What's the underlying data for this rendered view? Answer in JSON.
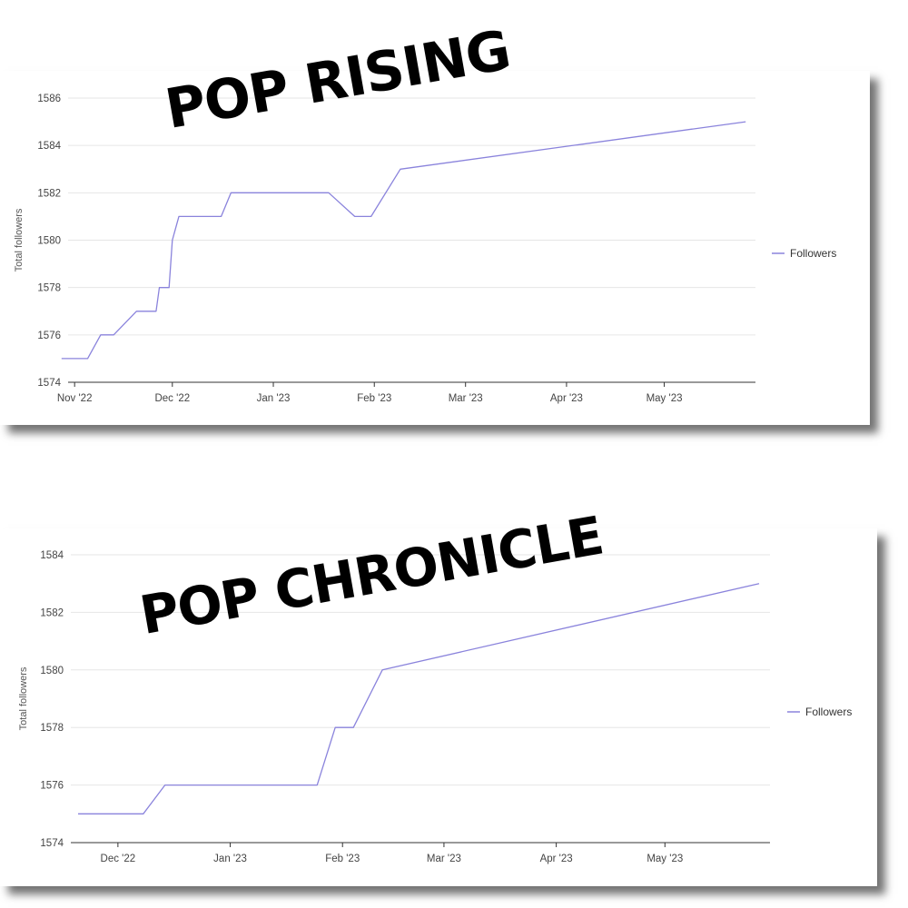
{
  "overlay_titles": {
    "top": "POP RISING",
    "bottom": "POP CHRONICLE"
  },
  "colors": {
    "series_line": "#8a83dc",
    "gridline": "#e6e6e6",
    "axis": "#333333",
    "title_text": "#000000"
  },
  "chart_data": [
    {
      "type": "line",
      "title": "",
      "ylabel": "Total followers",
      "xlabel": "",
      "ylim": [
        1574,
        1586
      ],
      "yticks": [
        1574,
        1576,
        1578,
        1580,
        1582,
        1584,
        1586
      ],
      "ytick_labels": [
        "1574",
        "1576",
        "1578",
        "1580",
        "1582",
        "1584",
        "1586"
      ],
      "xlim": [
        "2022-10-30",
        "2023-05-29"
      ],
      "xticks": [
        "2022-11-01",
        "2022-12-01",
        "2023-01-01",
        "2023-02-01",
        "2023-03-01",
        "2023-04-01",
        "2023-05-01"
      ],
      "xtick_labels": [
        "Nov '22",
        "Dec '22",
        "Jan '23",
        "Feb '23",
        "Mar '23",
        "Apr '23",
        "May '23"
      ],
      "grid": true,
      "legend": "right",
      "series": [
        {
          "name": "Followers",
          "x": [
            "2022-10-28",
            "2022-11-05",
            "2022-11-09",
            "2022-11-13",
            "2022-11-20",
            "2022-11-26",
            "2022-11-27",
            "2022-11-30",
            "2022-12-01",
            "2022-12-03",
            "2022-12-16",
            "2022-12-19",
            "2023-01-18",
            "2023-01-26",
            "2023-01-31",
            "2023-02-09",
            "2023-05-26"
          ],
          "y": [
            1575,
            1575,
            1576,
            1576,
            1577,
            1577,
            1578,
            1578,
            1580,
            1581,
            1581,
            1582,
            1582,
            1581,
            1581,
            1583,
            1585
          ]
        }
      ]
    },
    {
      "type": "line",
      "title": "",
      "ylabel": "Total followers",
      "xlabel": "",
      "ylim": [
        1574,
        1584
      ],
      "yticks": [
        1574,
        1576,
        1578,
        1580,
        1582,
        1584
      ],
      "ytick_labels": [
        "1574",
        "1576",
        "1578",
        "1580",
        "1582",
        "1584"
      ],
      "xlim": [
        "2022-11-18",
        "2023-05-30"
      ],
      "xticks": [
        "2022-12-01",
        "2023-01-01",
        "2023-02-01",
        "2023-03-01",
        "2023-04-01",
        "2023-05-01"
      ],
      "xtick_labels": [
        "Dec '22",
        "Jan '23",
        "Feb '23",
        "Mar '23",
        "Apr '23",
        "May '23"
      ],
      "grid": true,
      "legend": "right",
      "series": [
        {
          "name": "Followers",
          "x": [
            "2022-11-20",
            "2022-12-08",
            "2022-12-14",
            "2023-01-25",
            "2023-01-30",
            "2023-02-04",
            "2023-02-12",
            "2023-05-27"
          ],
          "y": [
            1575,
            1575,
            1576,
            1576,
            1578,
            1578,
            1580,
            1583
          ]
        }
      ]
    }
  ]
}
